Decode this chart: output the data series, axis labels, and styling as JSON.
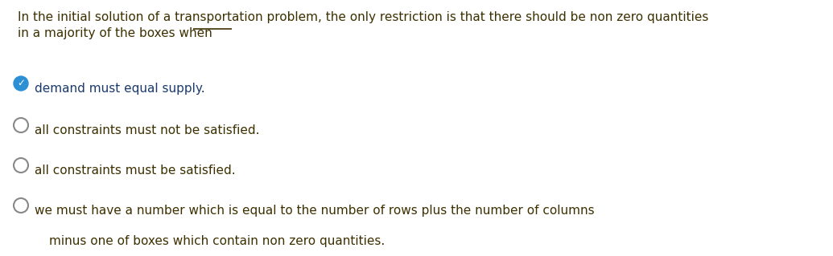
{
  "background_color": "#ffffff",
  "question_line1": "In the initial solution of a transportation problem, the only restriction is that there should be non zero quantities",
  "question_line2": "in a majority of the boxes when",
  "options": [
    {
      "label": "demand must equal supply.",
      "selected": true
    },
    {
      "label": "all constraints must not be satisfied.",
      "selected": false
    },
    {
      "label": "all constraints must be satisfied.",
      "selected": false
    },
    {
      "label": "we must have a number which is equal to the number of rows plus the number of columns",
      "selected": false
    }
  ],
  "last_line": "minus one of boxes which contain non zero quantities.",
  "text_color": "#3d3000",
  "option_text_color": "#1a3a6e",
  "selected_fill_color": "#2d8fd4",
  "selected_check_color": "#ffffff",
  "circle_edge_color": "#888888",
  "font_size": 11.0,
  "dpi": 100,
  "fig_width": 10.35,
  "fig_height": 3.19
}
